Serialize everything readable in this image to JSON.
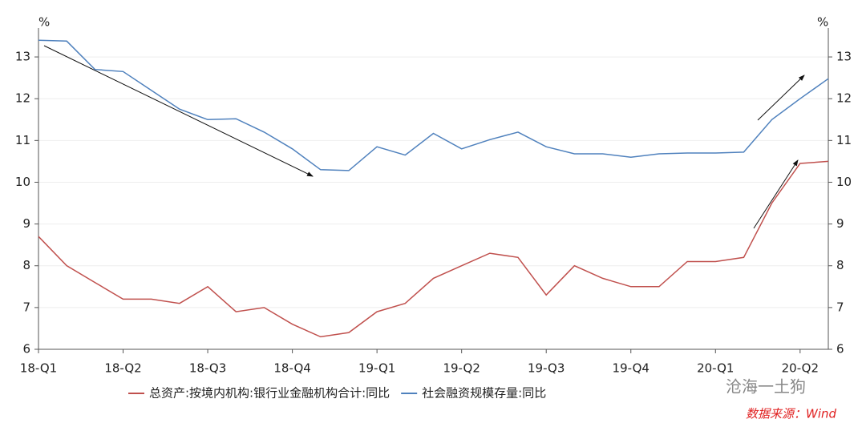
{
  "chart_data": {
    "type": "line",
    "y_unit": "%",
    "y2_unit": "%",
    "categories": [
      "18-Q1",
      null,
      null,
      "18-Q2",
      null,
      null,
      "18-Q3",
      null,
      null,
      "18-Q4",
      null,
      null,
      "19-Q1",
      null,
      null,
      "19-Q2",
      null,
      null,
      "19-Q3",
      null,
      null,
      "19-Q4",
      null,
      null,
      "20-Q1",
      null,
      null,
      "20-Q2",
      null
    ],
    "series": [
      {
        "name": "总资产:按境内机构:银行业金融机构合计:同比",
        "color": "#c0504d",
        "values": [
          8.7,
          8.0,
          7.6,
          7.2,
          7.2,
          7.1,
          7.5,
          6.9,
          7.0,
          6.6,
          6.3,
          6.4,
          6.9,
          7.1,
          7.7,
          8.0,
          8.3,
          8.2,
          7.3,
          8.0,
          7.7,
          7.5,
          7.5,
          8.1,
          8.1,
          8.2,
          9.5,
          10.45,
          10.5
        ]
      },
      {
        "name": "社会融资规模存量:同比",
        "color": "#4f81bd",
        "axis": "y2",
        "values": [
          13.4,
          13.38,
          12.7,
          12.65,
          12.2,
          11.75,
          11.5,
          11.52,
          11.2,
          10.8,
          10.3,
          10.28,
          10.85,
          10.65,
          11.17,
          10.8,
          11.02,
          11.2,
          10.85,
          10.68,
          10.68,
          10.6,
          10.68,
          10.7,
          10.7,
          10.72,
          11.5,
          12.0,
          12.48
        ]
      }
    ],
    "ylim": [
      6,
      13.5
    ],
    "yticks": [
      6,
      7,
      8,
      9,
      10,
      11,
      12,
      13
    ],
    "y2lim": [
      6,
      13.5
    ],
    "y2ticks": [
      6,
      7,
      8,
      9,
      10,
      11,
      12,
      13
    ],
    "grid": true,
    "legend": "bottom",
    "watermark": "沧海一土狗",
    "source": "数据来源：Wind"
  }
}
